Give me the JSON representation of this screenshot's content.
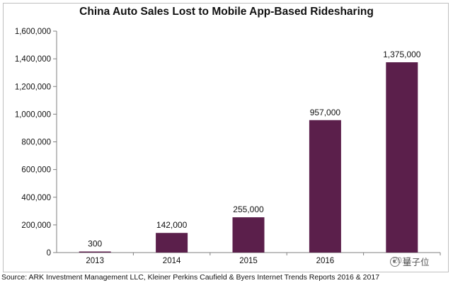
{
  "chart_data": {
    "type": "bar",
    "title": "China Auto Sales Lost to Mobile App-Based Ridesharing",
    "categories": [
      "2013",
      "2014",
      "2015",
      "2016",
      "2017"
    ],
    "values": [
      300,
      142000,
      255000,
      957000,
      1375000
    ],
    "data_labels": [
      "300",
      "142,000",
      "255,000",
      "957,000",
      "1,375,000"
    ],
    "y_ticks": [
      0,
      200000,
      400000,
      600000,
      800000,
      1000000,
      1200000,
      1400000,
      1600000
    ],
    "y_tick_labels": [
      "0",
      "200,000",
      "400,000",
      "600,000",
      "800,000",
      "1,000,000",
      "1,200,000",
      "1,400,000",
      "1,600,000"
    ],
    "ylim": [
      0,
      1600000
    ],
    "xlabel": "",
    "ylabel": "",
    "grid": false,
    "legend": "none",
    "bar_color": "#5b1f4b"
  },
  "source": "Source: ARK Investment Management LLC, Kleiner Perkins Caufield & Byers Internet Trends Reports 2016 & 2017",
  "watermark": {
    "text": "量子位",
    "icon": "wechat-logo-icon"
  }
}
